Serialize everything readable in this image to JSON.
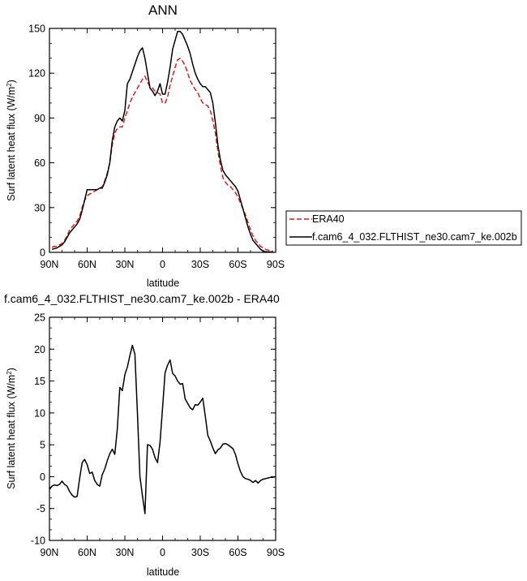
{
  "chart_data": [
    {
      "type": "line",
      "title": "ANN",
      "xlabel": "latitude",
      "ylabel": "Surf latent heat flux (W/m²)",
      "ylabel_main": "Surf latent heat flux (W/m",
      "ylabel_sup": "2",
      "ylabel_close": ")",
      "xlim": [
        90,
        -90
      ],
      "ylim": [
        0,
        150
      ],
      "xticks": [
        90,
        60,
        30,
        0,
        -30,
        -60,
        -90
      ],
      "xtick_labels": [
        "90N",
        "60N",
        "30N",
        "0",
        "30S",
        "60S",
        "90S"
      ],
      "yticks": [
        0,
        30,
        60,
        90,
        120,
        150
      ],
      "ytick_labels": [
        "0",
        "30",
        "60",
        "90",
        "120",
        "150"
      ],
      "grid": false,
      "legend_position": "right",
      "series": [
        {
          "name": "ERA40",
          "color": "#e41a1c",
          "style": "dashed",
          "x": [
            88,
            86,
            84,
            82,
            80,
            78,
            76,
            74,
            72,
            70,
            68,
            66,
            64,
            62,
            60,
            58,
            56,
            54,
            52,
            50,
            48,
            46,
            44,
            42,
            40,
            38,
            36,
            34,
            32,
            30,
            28,
            26,
            24,
            22,
            20,
            18,
            16,
            14,
            12,
            10,
            8,
            6,
            4,
            2,
            0,
            -2,
            -4,
            -6,
            -8,
            -10,
            -12,
            -14,
            -16,
            -18,
            -20,
            -22,
            -24,
            -26,
            -28,
            -30,
            -32,
            -34,
            -36,
            -38,
            -40,
            -42,
            -44,
            -46,
            -48,
            -50,
            -52,
            -54,
            -56,
            -58,
            -60,
            -62,
            -64,
            -66,
            -68,
            -70,
            -72,
            -74,
            -76,
            -78,
            -80,
            -82,
            -84,
            -86,
            -88
          ],
          "y": [
            3.5,
            4,
            4,
            5,
            6,
            8,
            11,
            15,
            17,
            19,
            21,
            24,
            30,
            35,
            38,
            39,
            40,
            41,
            42,
            43,
            44,
            48,
            53,
            60,
            72,
            80,
            83,
            84,
            84,
            90,
            95,
            100,
            104,
            107,
            110,
            113,
            116,
            118,
            114,
            111,
            110,
            108,
            107,
            106,
            100,
            100,
            104,
            112,
            118,
            124,
            129,
            130,
            128,
            125,
            120,
            115,
            112,
            109,
            107,
            103,
            100,
            99,
            98,
            95,
            88,
            80,
            68,
            58,
            50,
            47,
            45,
            44,
            42,
            40,
            37,
            33,
            29,
            25,
            20,
            15,
            11,
            8,
            6,
            4,
            3,
            2,
            1.5,
            1,
            0.8
          ]
        },
        {
          "name": "f.cam6_4_032.FLTHIST_ne30.cam7_ke.002b",
          "color": "#000000",
          "style": "solid",
          "x": [
            88,
            86,
            84,
            82,
            80,
            78,
            76,
            74,
            72,
            70,
            68,
            66,
            64,
            62,
            60,
            58,
            56,
            54,
            52,
            50,
            48,
            46,
            44,
            42,
            40,
            38,
            36,
            34,
            32,
            30,
            28,
            26,
            24,
            22,
            20,
            18,
            16,
            14,
            12,
            10,
            8,
            6,
            4,
            2,
            0,
            -2,
            -4,
            -6,
            -8,
            -10,
            -12,
            -14,
            -16,
            -18,
            -20,
            -22,
            -24,
            -26,
            -28,
            -30,
            -32,
            -34,
            -36,
            -38,
            -40,
            -42,
            -44,
            -46,
            -48,
            -50,
            -52,
            -54,
            -56,
            -58,
            -60,
            -62,
            -64,
            -66,
            -68,
            -70,
            -72,
            -74,
            -76,
            -78,
            -80,
            -82,
            -84,
            -86,
            -88
          ],
          "y": [
            2,
            2.5,
            3,
            4,
            5,
            7,
            10,
            13,
            15,
            17,
            19,
            22,
            28,
            35,
            42,
            42,
            42,
            42,
            42,
            43,
            43,
            47,
            52,
            60,
            75,
            84,
            88,
            90,
            88,
            95,
            113,
            116,
            121,
            126,
            131,
            135,
            137,
            130,
            120,
            110,
            108,
            105,
            108,
            113,
            106,
            106,
            114,
            124,
            136,
            142,
            148,
            148,
            146,
            142,
            138,
            133,
            126,
            120,
            116,
            113,
            111,
            111,
            109,
            107,
            100,
            87,
            72,
            62,
            55,
            52,
            50,
            48,
            46,
            44,
            41,
            35,
            29,
            23,
            17,
            12,
            8,
            6,
            4,
            2,
            1,
            0.5,
            0.4,
            0.3,
            0.2
          ]
        }
      ]
    },
    {
      "type": "line",
      "title": "f.cam6_4_032.FLTHIST_ne30.cam7_ke.002b - ERA40",
      "xlabel": "latitude",
      "ylabel": "Surf latent heat flux (W/m²)",
      "ylabel_main": "Surf latent heat flux (W/m",
      "ylabel_sup": "2",
      "ylabel_close": ")",
      "xlim": [
        90,
        -90
      ],
      "ylim": [
        -10,
        25
      ],
      "xticks": [
        90,
        60,
        30,
        0,
        -30,
        -60,
        -90
      ],
      "xtick_labels": [
        "90N",
        "60N",
        "30N",
        "0",
        "30S",
        "60S",
        "90S"
      ],
      "yticks": [
        -10,
        -5,
        0,
        5,
        10,
        15,
        20,
        25
      ],
      "ytick_labels": [
        "-10",
        "-5",
        "0",
        "5",
        "10",
        "15",
        "20",
        "25"
      ],
      "grid": false,
      "series": [
        {
          "color": "#000000",
          "style": "solid",
          "x": [
            90,
            88,
            86,
            84,
            82,
            80,
            78,
            76,
            74,
            72,
            70,
            68,
            66,
            64,
            62,
            60,
            58,
            56,
            54,
            52,
            50,
            48,
            46,
            44,
            42,
            40,
            38,
            36,
            34,
            32,
            30,
            28,
            26,
            24,
            22,
            20,
            18,
            16,
            14,
            12,
            10,
            8,
            6,
            4,
            2,
            0,
            -2,
            -4,
            -6,
            -8,
            -10,
            -12,
            -14,
            -16,
            -18,
            -20,
            -22,
            -24,
            -26,
            -28,
            -30,
            -32,
            -34,
            -36,
            -38,
            -40,
            -42,
            -44,
            -46,
            -48,
            -50,
            -52,
            -54,
            -56,
            -58,
            -60,
            -62,
            -64,
            -66,
            -68,
            -70,
            -72,
            -74,
            -76,
            -78,
            -80,
            -82,
            -84,
            -86,
            -88,
            -90
          ],
          "y": [
            -2,
            -1.5,
            -1.3,
            -1.4,
            -1.2,
            -0.7,
            -1.2,
            -1.5,
            -2.3,
            -2.9,
            -3.2,
            -3.1,
            -0.3,
            2.2,
            2.7,
            1.9,
            0.5,
            0.7,
            -0.6,
            -1.2,
            -1.5,
            0.3,
            1.2,
            2.5,
            3.6,
            4.3,
            3.5,
            7.5,
            14,
            13.5,
            16,
            17.2,
            19,
            20.6,
            19.2,
            10,
            0,
            -3,
            -5.8,
            5,
            4.9,
            4.3,
            3,
            2.2,
            5.4,
            10.8,
            16.3,
            17.5,
            18.3,
            16.2,
            15.8,
            15,
            14.5,
            14.6,
            12.2,
            11.5,
            10.8,
            10.5,
            11.3,
            11.2,
            11.7,
            12.3,
            9.5,
            6.5,
            5.6,
            4.5,
            3.6,
            4.2,
            4.5,
            5.1,
            5.2,
            5,
            4.7,
            4.4,
            3.5,
            2,
            0.8,
            0,
            -0.3,
            -0.4,
            -0.6,
            -0.9,
            -0.6,
            -1,
            -0.6,
            -0.4,
            -0.3,
            -0.2,
            -0.1,
            -0.1,
            0
          ]
        }
      ]
    }
  ]
}
